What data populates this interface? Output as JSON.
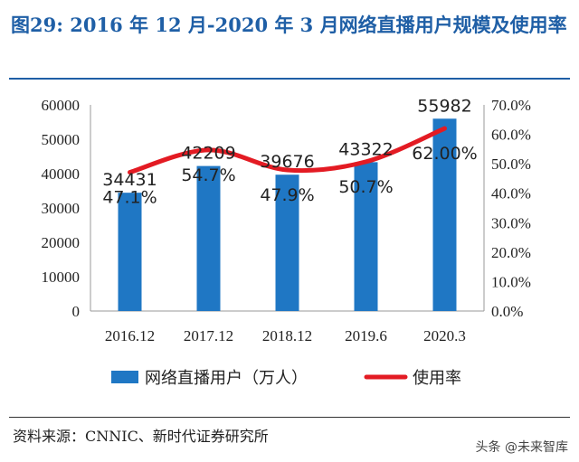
{
  "title": "图29:   2016 年 12 月-2020 年 3 月网络直播用户规模及使用率",
  "source": "资料来源：CNNIC、新时代证券研究所",
  "watermark": "头条 @未来智库",
  "colors": {
    "bar": "#1f77c4",
    "line": "#e31b23",
    "title": "#1f5fa6"
  },
  "chart_data": {
    "type": "bar",
    "categories": [
      "2016.12",
      "2017.12",
      "2018.12",
      "2019.6",
      "2020.3"
    ],
    "series": [
      {
        "name": "网络直播用户（万人）",
        "type": "bar",
        "axis": "left",
        "values": [
          34431,
          42209,
          39676,
          43322,
          55982
        ]
      },
      {
        "name": "使用率",
        "type": "line",
        "axis": "right",
        "values": [
          47.1,
          54.7,
          47.9,
          50.7,
          62.0
        ]
      }
    ],
    "bar_labels": [
      "34431",
      "42209",
      "39676",
      "43322",
      "55982"
    ],
    "line_labels": [
      "47.1%",
      "54.7%",
      "47.9%",
      "50.7%",
      "62.00%"
    ],
    "ylim": [
      0,
      60000
    ],
    "yticks": [
      "0",
      "10000",
      "20000",
      "30000",
      "40000",
      "50000",
      "60000"
    ],
    "y2lim": [
      0,
      70
    ],
    "y2ticks": [
      "0.0%",
      "10.0%",
      "20.0%",
      "30.0%",
      "40.0%",
      "50.0%",
      "60.0%",
      "70.0%"
    ],
    "grid": false,
    "legend_position": "bottom"
  }
}
